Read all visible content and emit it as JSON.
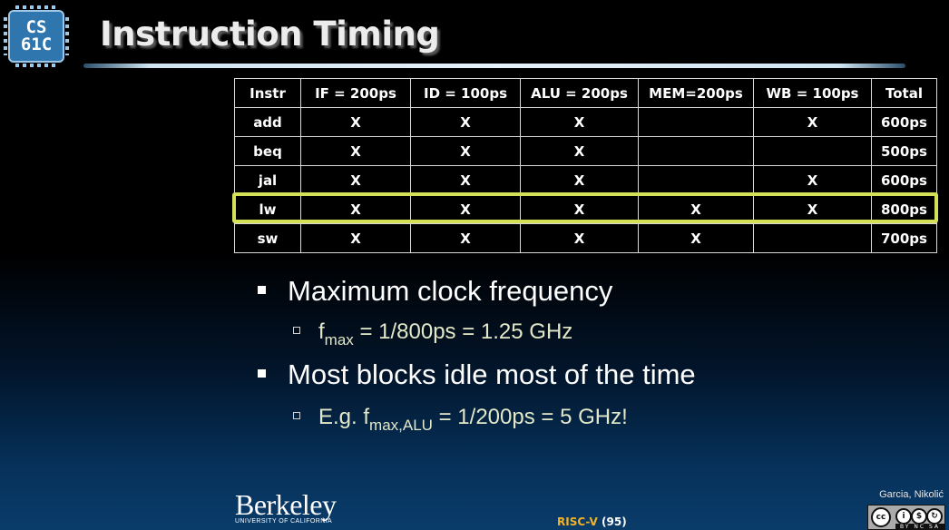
{
  "logo": {
    "line1": "CS",
    "line2": "61C"
  },
  "title": "Instruction Timing",
  "table": {
    "headers": [
      "Instr",
      "IF = 200ps",
      "ID = 100ps",
      "ALU = 200ps",
      "MEM=200ps",
      "WB = 100ps",
      "Total"
    ],
    "rows": [
      [
        "add",
        "X",
        "X",
        "X",
        "",
        "X",
        "600ps"
      ],
      [
        "beq",
        "X",
        "X",
        "X",
        "",
        "",
        "500ps"
      ],
      [
        "jal",
        "X",
        "X",
        "X",
        "",
        "X",
        "600ps"
      ],
      [
        "lw",
        "X",
        "X",
        "X",
        "X",
        "X",
        "800ps"
      ],
      [
        "sw",
        "X",
        "X",
        "X",
        "X",
        "",
        "700ps"
      ]
    ],
    "highlighted_row": "lw",
    "highlight_color": "#d4e157"
  },
  "bullets": {
    "b1": "Maximum clock frequency",
    "b1_sub": {
      "prefix": "f",
      "subscript": "max",
      "suffix": " = 1/800ps = 1.25 GHz"
    },
    "b2": "Most blocks idle most of the time",
    "b2_sub": {
      "prefix": "E.g. f",
      "subscript": "max,ALU",
      "suffix": " = 1/200ps = 5 GHz!"
    }
  },
  "footer": {
    "berkeley": "Berkeley",
    "university": "UNIVERSITY OF CALIFORNIA",
    "section": "RISC-V",
    "page": "(95)",
    "credit": "Garcia, Nikolić",
    "license_icons": [
      "cc-icon",
      "by-icon",
      "nc-icon",
      "sa-icon"
    ],
    "license_labels": "BY NC SA"
  }
}
